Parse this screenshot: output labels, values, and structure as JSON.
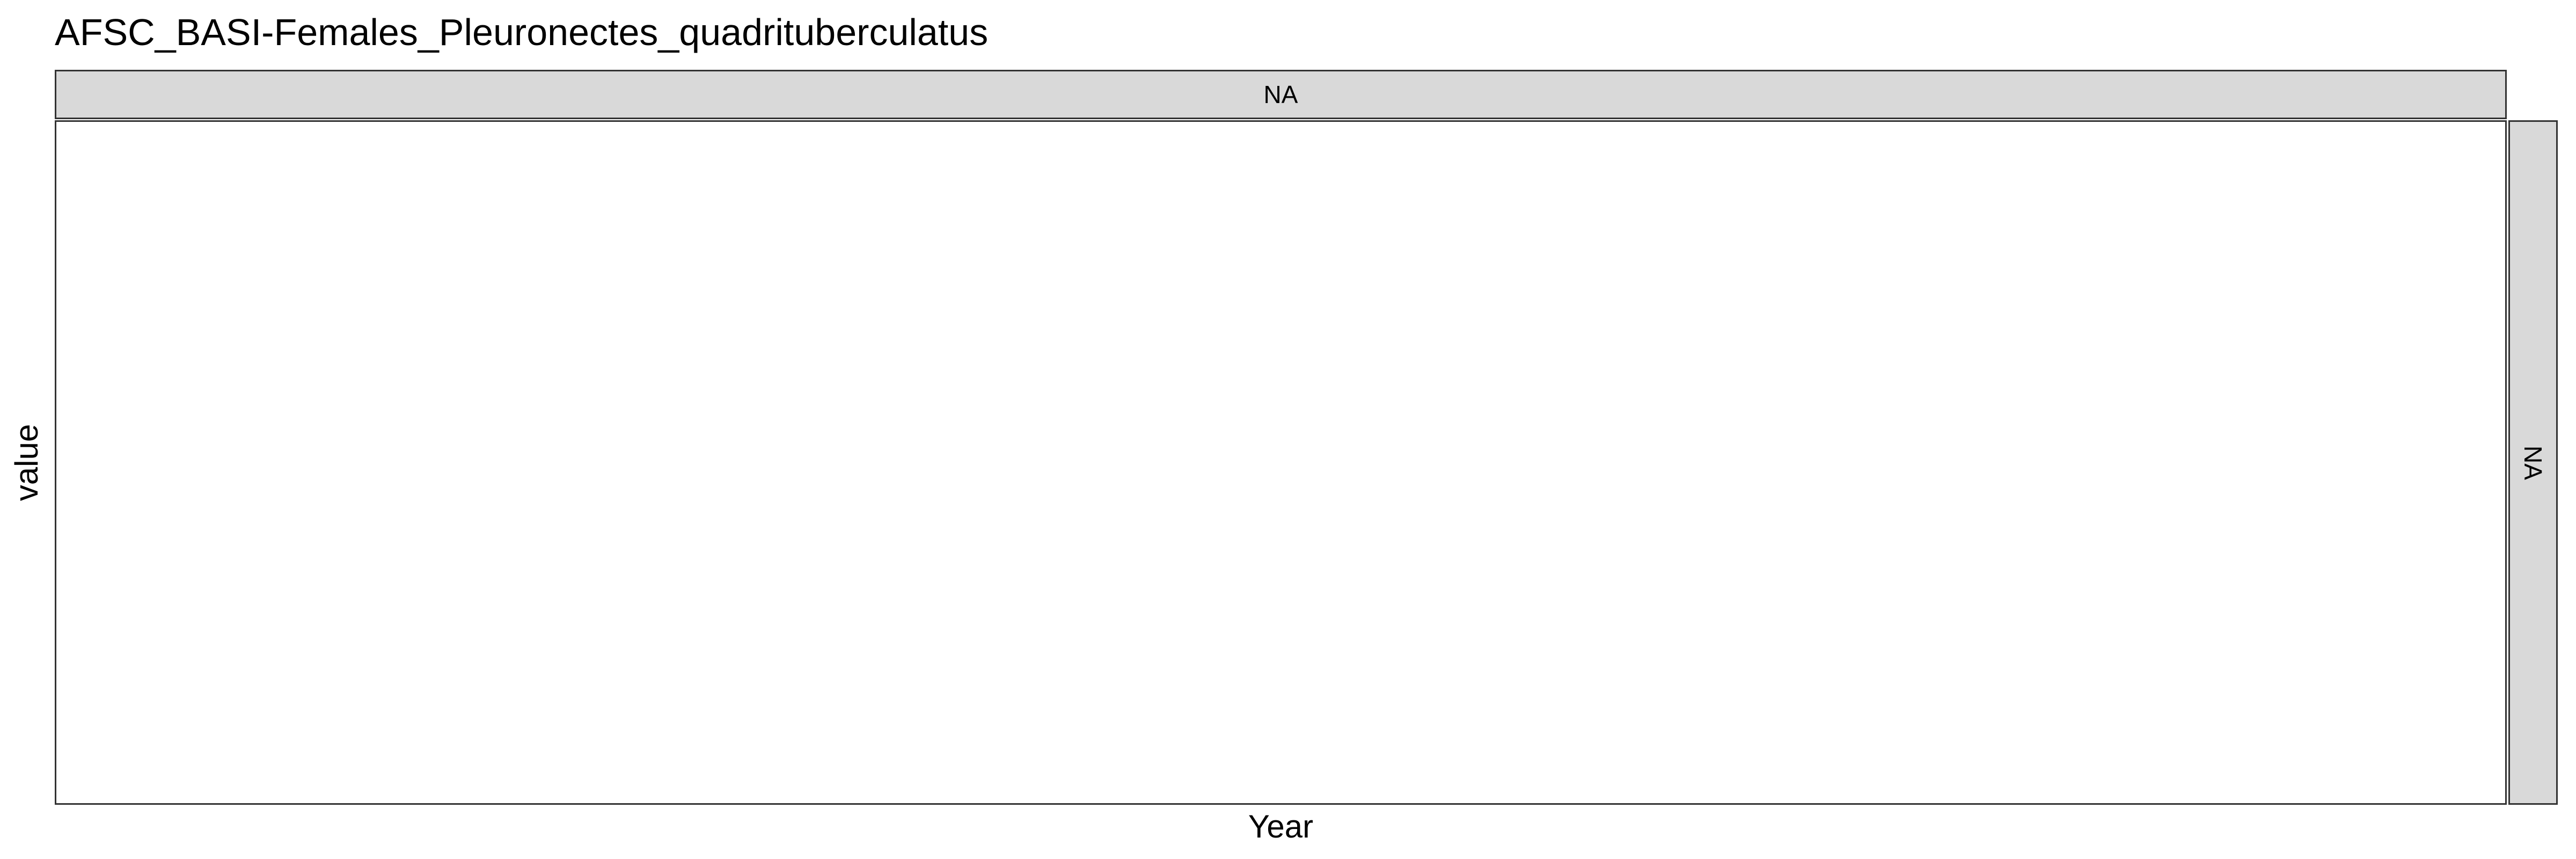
{
  "chart_data": {
    "type": "line",
    "title": "AFSC_BASI-Females_Pleuronectes_quadrituberculatus",
    "xlabel": "Year",
    "ylabel": "value",
    "facet_col_label": "NA",
    "facet_row_label": "NA",
    "series": [],
    "grid": false,
    "legend": "none"
  }
}
